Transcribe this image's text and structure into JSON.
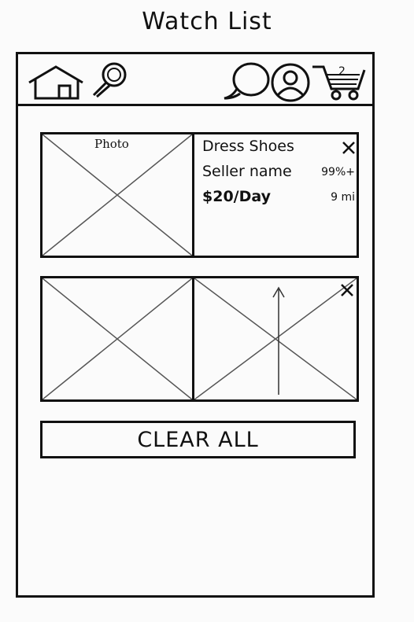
{
  "page": {
    "title": "Watch List"
  },
  "top_bar": {
    "icons": [
      "home-icon",
      "search-icon",
      "chat-icon",
      "profile-icon",
      "cart-icon"
    ],
    "cart_count": "2"
  },
  "watch_items": [
    {
      "photo_label": "Photo",
      "name": "Dress Shoes",
      "seller": "Seller name",
      "rating": "99%+",
      "price": "$20/Day",
      "distance": "9 mi",
      "remove_label": "×"
    },
    {
      "photo_label": "",
      "name": "",
      "seller": "",
      "rating": "",
      "price": "",
      "distance": "",
      "remove_label": "×"
    }
  ],
  "actions": {
    "clear_all_label": "CLEAR ALL"
  },
  "colors": {
    "ink": "#111111",
    "paper": "#fbfbfb"
  }
}
